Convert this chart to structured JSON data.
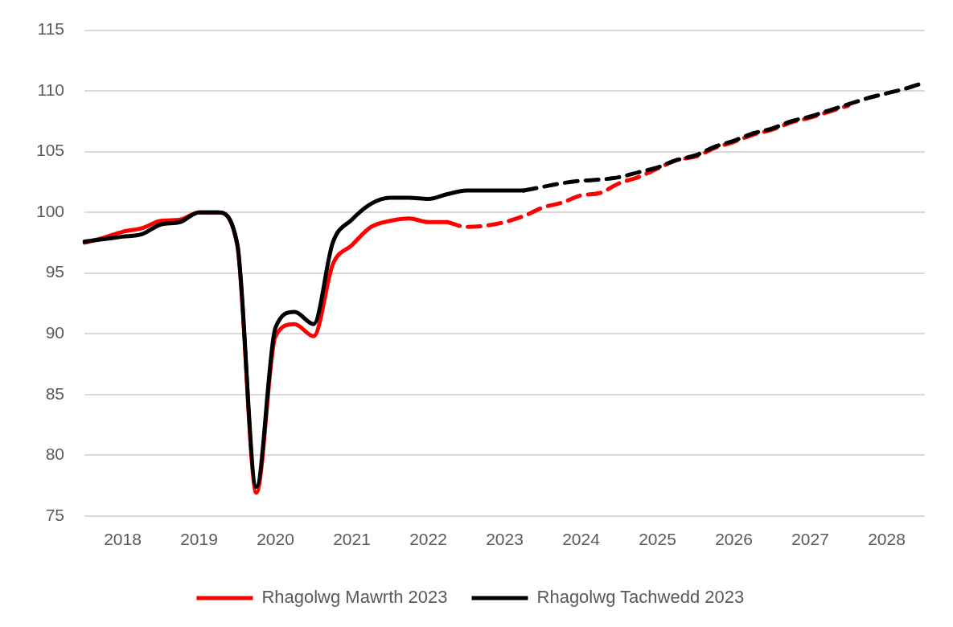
{
  "chart_data": {
    "type": "line",
    "categories": [
      null,
      null,
      "2018",
      null,
      null,
      null,
      "2019",
      null,
      null,
      null,
      "2020",
      null,
      null,
      null,
      "2021",
      null,
      null,
      null,
      "2022",
      null,
      null,
      null,
      "2023",
      null,
      null,
      null,
      "2024",
      null,
      null,
      null,
      "2025",
      null,
      null,
      null,
      "2026",
      null,
      null,
      null,
      "2027",
      null,
      null,
      null,
      "2028",
      null,
      null
    ],
    "series": [
      {
        "name": "Rhagolwg Mawrth 2023",
        "color": "#ff0000",
        "line_style": "solid",
        "values": [
          97.5,
          97.9,
          98.4,
          98.7,
          99.3,
          99.4,
          100,
          100,
          97.3,
          76.9,
          89.8,
          90.8,
          89.8,
          95.7,
          97.3,
          98.8,
          99.3,
          99.5,
          99.2,
          99.2,
          null,
          null,
          null,
          null,
          null,
          null,
          null,
          null,
          null,
          null,
          null,
          null,
          null,
          null,
          null,
          null,
          null,
          null,
          null,
          null,
          null,
          null,
          null,
          null,
          null
        ]
      },
      {
        "color": "#ff0000",
        "line_style": "dashed",
        "values": [
          null,
          null,
          null,
          null,
          null,
          null,
          null,
          null,
          null,
          null,
          null,
          null,
          null,
          null,
          null,
          null,
          null,
          null,
          null,
          99.2,
          98.8,
          98.9,
          99.2,
          99.7,
          100.4,
          100.8,
          101.4,
          101.6,
          102.4,
          102.9,
          103.6,
          104.3,
          104.6,
          105.3,
          105.8,
          106.4,
          106.8,
          107.4,
          107.8,
          108.3,
          108.8,
          null,
          null,
          null,
          null
        ]
      },
      {
        "name": "Rhagolwg Tachwedd 2023",
        "color": "#000000",
        "line_style": "solid",
        "values": [
          97.6,
          97.8,
          98.0,
          98.2,
          99.0,
          99.2,
          100,
          100,
          97.4,
          77.4,
          90.5,
          91.8,
          90.8,
          97.5,
          99.4,
          100.7,
          101.2,
          101.2,
          101.1,
          101.5,
          101.8,
          101.8,
          101.8,
          101.8,
          null,
          null,
          null,
          null,
          null,
          null,
          null,
          null,
          null,
          null,
          null,
          null,
          null,
          null,
          null,
          null,
          null,
          null,
          null,
          null,
          null
        ]
      },
      {
        "color": "#000000",
        "line_style": "dashed",
        "values": [
          null,
          null,
          null,
          null,
          null,
          null,
          null,
          null,
          null,
          null,
          null,
          null,
          null,
          null,
          null,
          null,
          null,
          null,
          null,
          null,
          null,
          null,
          null,
          101.8,
          102.1,
          102.4,
          102.6,
          102.7,
          102.9,
          103.3,
          103.7,
          104.3,
          104.7,
          105.4,
          105.9,
          106.5,
          106.9,
          107.5,
          107.9,
          108.4,
          108.9,
          109.4,
          109.8,
          110.2,
          110.7
        ]
      }
    ],
    "ylim": [
      75,
      115
    ],
    "yticks": [
      75,
      80,
      85,
      90,
      95,
      100,
      105,
      110,
      115
    ],
    "grid": "y",
    "legend": "bottom",
    "marker": "none"
  }
}
